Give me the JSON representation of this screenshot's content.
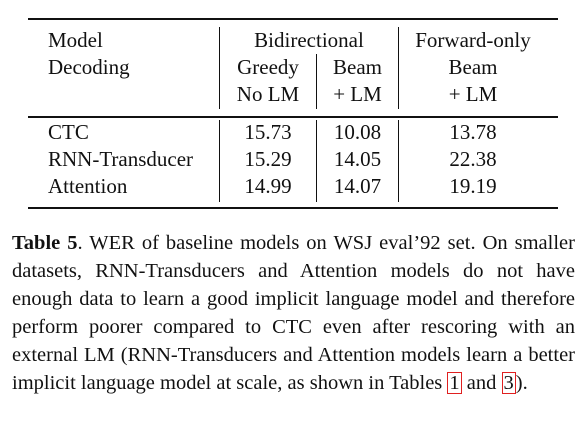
{
  "table": {
    "header": {
      "row1": {
        "col0": "Model",
        "bidirectional": "Bidirectional",
        "forward": "Forward-only"
      },
      "row2": {
        "col0": "Decoding",
        "greedy": "Greedy",
        "beam": "Beam",
        "fwd_beam": "Beam"
      },
      "row3": {
        "greedy_lm": "No LM",
        "beam_lm": "+ LM",
        "fwd_lm": "+ LM"
      }
    },
    "rows": [
      {
        "model": "CTC",
        "greedy": "15.73",
        "beam": "10.08",
        "forward": "13.78"
      },
      {
        "model": "RNN-Transducer",
        "greedy": "15.29",
        "beam": "14.05",
        "forward": "22.38"
      },
      {
        "model": "Attention",
        "greedy": "14.99",
        "beam": "14.07",
        "forward": "19.19"
      }
    ]
  },
  "caption": {
    "label": "Table 5",
    "text_part1": ". WER of baseline models on WSJ eval’92 set. On smaller datasets, RNN-Transducers and Attention models do not have enough data to learn a good implicit language model and therefore perform poorer compared to CTC even after rescoring with an external LM (RNN-Transducers and Attention models learn a better implicit language model at scale, as shown in Tables ",
    "ref1": "1",
    "and": " and ",
    "ref2": "3",
    "end": ")."
  }
}
